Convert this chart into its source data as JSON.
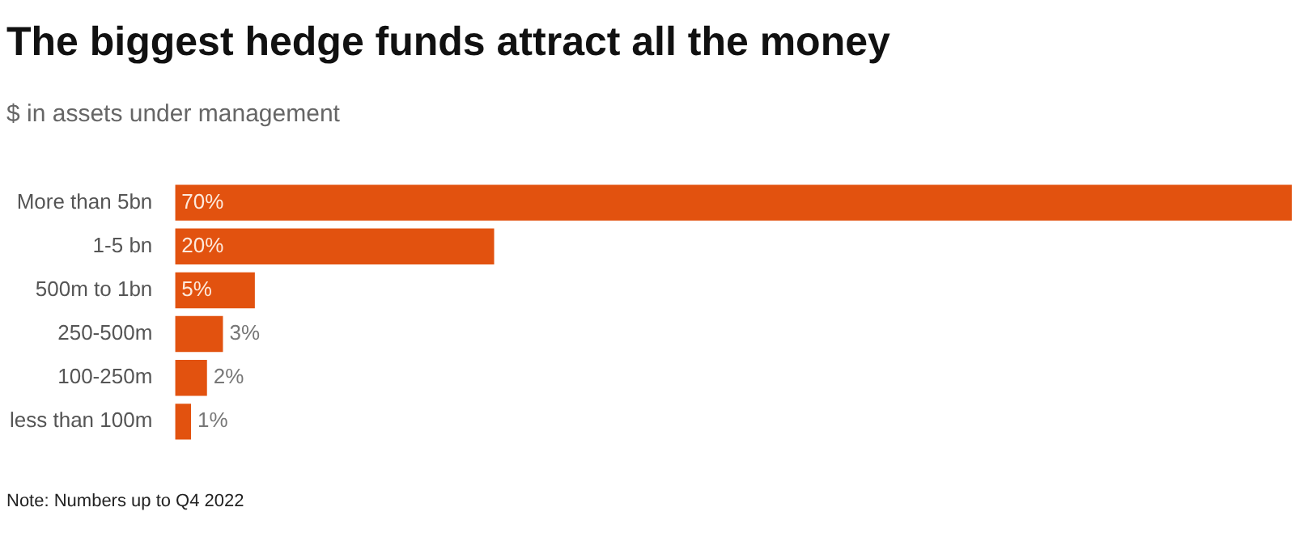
{
  "chart_data": {
    "type": "bar",
    "orientation": "horizontal",
    "title": "The biggest hedge funds attract all the money",
    "subtitle": "$ in assets under management",
    "categories": [
      "More than 5bn",
      "1-5 bn",
      "500m to 1bn",
      "250-500m",
      "100-250m",
      "less than 100m"
    ],
    "values": [
      70,
      20,
      5,
      3,
      2,
      1
    ],
    "color": "#e2520f",
    "value_labels": [
      "70%",
      "20%",
      "5%",
      "3%",
      "2%",
      "1%"
    ],
    "legend": false,
    "annotations": [
      "Note: Numbers up to Q4 2022"
    ]
  }
}
